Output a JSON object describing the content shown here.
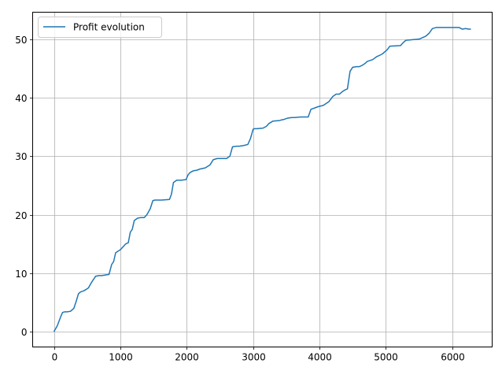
{
  "chart_data": {
    "type": "line",
    "title": "",
    "xlabel": "",
    "ylabel": "",
    "xlim": [
      -320,
      6600
    ],
    "ylim": [
      -2.6,
      54.6
    ],
    "xticks": [
      0,
      1000,
      2000,
      3000,
      4000,
      5000,
      6000
    ],
    "yticks": [
      0,
      10,
      20,
      30,
      40,
      50
    ],
    "xtick_labels": [
      "0",
      "1000",
      "2000",
      "3000",
      "4000",
      "5000",
      "6000"
    ],
    "ytick_labels": [
      "0",
      "10",
      "20",
      "30",
      "40",
      "50"
    ],
    "grid": true,
    "legend_position": "top-left",
    "series": [
      {
        "name": "Profit evolution",
        "color": "#1f77b4",
        "x": [
          0,
          50,
          100,
          130,
          160,
          200,
          250,
          300,
          330,
          370,
          400,
          450,
          480,
          520,
          570,
          600,
          630,
          680,
          720,
          830,
          870,
          900,
          930,
          970,
          1000,
          1040,
          1080,
          1120,
          1150,
          1180,
          1210,
          1260,
          1300,
          1360,
          1400,
          1450,
          1490,
          1520,
          1560,
          1620,
          1740,
          1770,
          1800,
          1850,
          1880,
          1920,
          1990,
          2020,
          2050,
          2100,
          2150,
          2200,
          2280,
          2350,
          2400,
          2460,
          2500,
          2550,
          2600,
          2650,
          2690,
          2750,
          2790,
          2850,
          2920,
          2960,
          3000,
          3020,
          3060,
          3150,
          3200,
          3240,
          3300,
          3400,
          3430,
          3470,
          3520,
          3580,
          3620,
          3720,
          3780,
          3830,
          3870,
          3990,
          4030,
          4060,
          4100,
          4140,
          4200,
          4250,
          4300,
          4340,
          4380,
          4420,
          4460,
          4500,
          4560,
          4600,
          4640,
          4680,
          4720,
          4800,
          4860,
          4900,
          4950,
          5000,
          5020,
          5060,
          5220,
          5260,
          5300,
          5400,
          5500,
          5560,
          5600,
          5650,
          5700,
          5760,
          5800,
          5900,
          6000,
          6100,
          6150,
          6200,
          6250,
          6280
        ],
        "y": [
          0,
          1,
          2.5,
          3.3,
          3.4,
          3.4,
          3.5,
          4,
          5,
          6.5,
          6.8,
          7,
          7.2,
          7.5,
          8.5,
          9,
          9.5,
          9.6,
          9.6,
          9.8,
          11.5,
          12,
          13.5,
          13.8,
          14,
          14.5,
          15,
          15.2,
          17,
          17.5,
          19,
          19.4,
          19.5,
          19.5,
          20,
          21,
          22.4,
          22.5,
          22.5,
          22.5,
          22.6,
          23.5,
          25.5,
          25.9,
          25.9,
          25.9,
          26,
          26.8,
          27.2,
          27.5,
          27.6,
          27.8,
          28,
          28.5,
          29.4,
          29.6,
          29.6,
          29.6,
          29.6,
          30,
          31.6,
          31.7,
          31.7,
          31.8,
          32,
          33,
          34.6,
          34.7,
          34.7,
          34.8,
          35.1,
          35.6,
          36,
          36.1,
          36.2,
          36.3,
          36.5,
          36.6,
          36.6,
          36.7,
          36.7,
          36.7,
          38,
          38.5,
          38.6,
          38.7,
          39,
          39.3,
          40.2,
          40.6,
          40.6,
          41,
          41.3,
          41.5,
          44.5,
          45.2,
          45.3,
          45.3,
          45.5,
          45.8,
          46.2,
          46.5,
          47,
          47.2,
          47.5,
          48,
          48.2,
          48.8,
          48.9,
          49.4,
          49.8,
          49.9,
          50,
          50.3,
          50.5,
          51,
          51.8,
          52,
          52,
          52,
          52,
          52,
          51.7,
          51.8,
          51.7,
          51.7
        ]
      }
    ]
  }
}
